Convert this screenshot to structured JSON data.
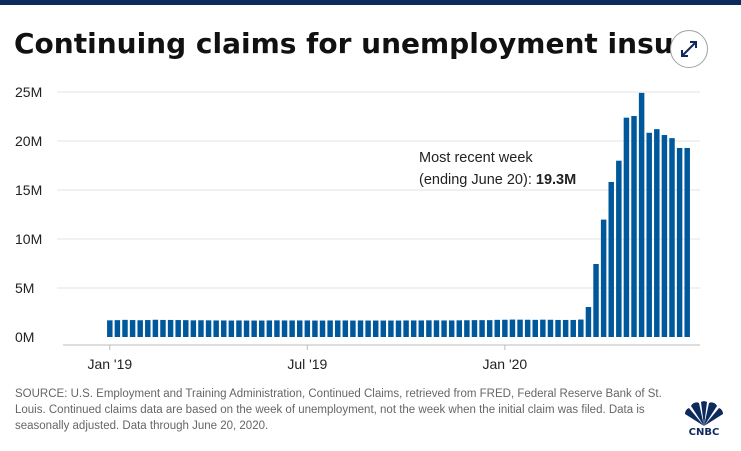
{
  "header": {
    "title": "Continuing claims for unemployment insurance",
    "expand_icon": "expand-arrows-icon"
  },
  "annotation": {
    "line1": "Most recent week",
    "line2_prefix": "(ending June 20):",
    "line2_value": "19.3M"
  },
  "footer": {
    "source": "SOURCE: U.S. Employment and Training Administration, Continued Claims, retrieved from FRED, Federal Reserve Bank of St. Louis. Continued claims data are based on the week of unemployment, not the week when the initial claim was filed. Data is seasonally adjusted. Data through June 20, 2020.",
    "logo_text": "CNBC"
  },
  "colors": {
    "bar": "#00589c",
    "grid": "#e3e3e3",
    "top_bar": "#0d2a5c"
  },
  "chart_data": {
    "type": "bar",
    "title": "Continuing claims for unemployment insurance",
    "xlabel": "",
    "ylabel": "",
    "ylim": [
      0,
      25000000
    ],
    "yticks": [
      {
        "value": 0,
        "label": "0M"
      },
      {
        "value": 5000000,
        "label": "5M"
      },
      {
        "value": 10000000,
        "label": "10M"
      },
      {
        "value": 15000000,
        "label": "15M"
      },
      {
        "value": 20000000,
        "label": "20M"
      },
      {
        "value": 25000000,
        "label": "25M"
      }
    ],
    "xticks": [
      {
        "x": "2019-01-05",
        "label": "Jan '19"
      },
      {
        "x": "2019-07-06",
        "label": "Jul '19"
      },
      {
        "x": "2020-01-04",
        "label": "Jan '20"
      }
    ],
    "grid": true,
    "legend": "none",
    "x": [
      "2019-01-05",
      "2019-01-12",
      "2019-01-19",
      "2019-01-26",
      "2019-02-02",
      "2019-02-09",
      "2019-02-16",
      "2019-02-23",
      "2019-03-02",
      "2019-03-09",
      "2019-03-16",
      "2019-03-23",
      "2019-03-30",
      "2019-04-06",
      "2019-04-13",
      "2019-04-20",
      "2019-04-27",
      "2019-05-04",
      "2019-05-11",
      "2019-05-18",
      "2019-05-25",
      "2019-06-01",
      "2019-06-08",
      "2019-06-15",
      "2019-06-22",
      "2019-06-29",
      "2019-07-06",
      "2019-07-13",
      "2019-07-20",
      "2019-07-27",
      "2019-08-03",
      "2019-08-10",
      "2019-08-17",
      "2019-08-24",
      "2019-08-31",
      "2019-09-07",
      "2019-09-14",
      "2019-09-21",
      "2019-09-28",
      "2019-10-05",
      "2019-10-12",
      "2019-10-19",
      "2019-10-26",
      "2019-11-02",
      "2019-11-09",
      "2019-11-16",
      "2019-11-23",
      "2019-11-30",
      "2019-12-07",
      "2019-12-14",
      "2019-12-21",
      "2019-12-28",
      "2020-01-04",
      "2020-01-11",
      "2020-01-18",
      "2020-01-25",
      "2020-02-01",
      "2020-02-08",
      "2020-02-15",
      "2020-02-22",
      "2020-02-29",
      "2020-03-07",
      "2020-03-14",
      "2020-03-21",
      "2020-03-28",
      "2020-04-04",
      "2020-04-11",
      "2020-04-18",
      "2020-04-25",
      "2020-05-02",
      "2020-05-09",
      "2020-05-16",
      "2020-05-23",
      "2020-05-30",
      "2020-06-06",
      "2020-06-13",
      "2020-06-20"
    ],
    "values": [
      1700000,
      1720000,
      1750000,
      1730000,
      1710000,
      1730000,
      1760000,
      1740000,
      1740000,
      1730000,
      1720000,
      1700000,
      1710000,
      1700000,
      1690000,
      1690000,
      1680000,
      1690000,
      1680000,
      1680000,
      1680000,
      1690000,
      1700000,
      1690000,
      1690000,
      1690000,
      1690000,
      1680000,
      1680000,
      1690000,
      1690000,
      1690000,
      1680000,
      1690000,
      1680000,
      1680000,
      1680000,
      1680000,
      1680000,
      1690000,
      1690000,
      1690000,
      1700000,
      1700000,
      1690000,
      1690000,
      1700000,
      1710000,
      1720000,
      1720000,
      1720000,
      1750000,
      1760000,
      1780000,
      1770000,
      1760000,
      1750000,
      1770000,
      1760000,
      1740000,
      1740000,
      1740000,
      1780000,
      3060000,
      7450000,
      11980000,
      15820000,
      17990000,
      22380000,
      22550000,
      24910000,
      20840000,
      21210000,
      20610000,
      20290000,
      19290000,
      19290000
    ]
  }
}
